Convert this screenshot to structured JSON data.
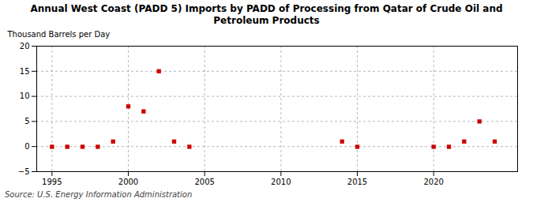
{
  "chart_data": {
    "type": "scatter",
    "title": "Annual West Coast (PADD 5) Imports by PADD of Processing from Qatar of Crude Oil and\nPetroleum Products",
    "ylabel": "Thousand Barrels per Day",
    "source": "Source: U.S. Energy Information Administration",
    "x": [
      1995,
      1996,
      1997,
      1998,
      1999,
      2000,
      2001,
      2002,
      2003,
      2004,
      2014,
      2015,
      2020,
      2021,
      2022,
      2023,
      2024
    ],
    "values": [
      -0.05,
      -0.05,
      -0.05,
      -0.05,
      1.0,
      8.0,
      7.0,
      15.0,
      1.0,
      -0.05,
      1.0,
      -0.05,
      -0.05,
      -0.05,
      1.0,
      5.0,
      1.0
    ],
    "color": "#cc0000",
    "marker": "square",
    "xlim": [
      1994.0,
      2025.5
    ],
    "xticks": [
      1995,
      2000,
      2005,
      2010,
      2015,
      2020
    ],
    "ylim": [
      -5,
      20
    ],
    "yticks": [
      -5,
      0,
      5,
      10,
      15,
      20
    ],
    "grid": true
  }
}
